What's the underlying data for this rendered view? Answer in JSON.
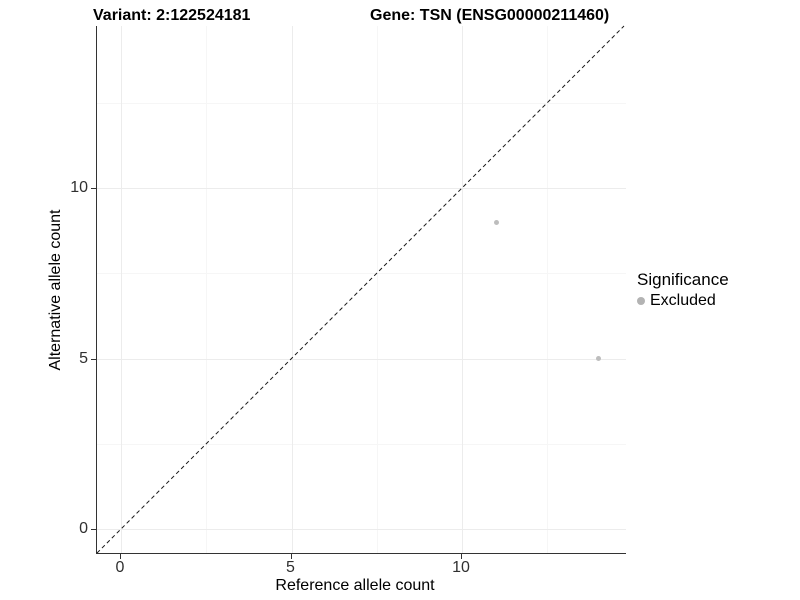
{
  "header": {
    "variant_title": "Variant: 2:122524181",
    "gene_title": "Gene: TSN (ENSG00000211460)"
  },
  "chart_data": {
    "type": "scatter",
    "title_left": "Variant: 2:122524181",
    "title_right": "Gene: TSN (ENSG00000211460)",
    "xlabel": "Reference allele count",
    "ylabel": "Alternative allele count",
    "xlim": [
      -0.75,
      14.75
    ],
    "ylim": [
      -0.75,
      14.75
    ],
    "x_ticks": [
      0,
      5,
      10
    ],
    "y_ticks": [
      0,
      5,
      10
    ],
    "x_tick_labels": [
      "0",
      "5",
      "10"
    ],
    "y_tick_labels": [
      "0",
      "5",
      "10"
    ],
    "x_minor_ticks": [
      2.5,
      7.5,
      12.5
    ],
    "y_minor_ticks": [
      2.5,
      7.5,
      12.5
    ],
    "grid": "major and minor gridlines, very light gray on white panel",
    "identity_line": {
      "type": "y=x",
      "style": "dashed",
      "color": "#1a1a1a"
    },
    "series": [
      {
        "name": "Excluded",
        "color": "#bdbdbd",
        "points": [
          {
            "x": 11,
            "y": 9
          },
          {
            "x": 14,
            "y": 5
          }
        ]
      }
    ],
    "legend_position": "right-middle"
  },
  "legend": {
    "title": "Significance",
    "items": [
      {
        "label": "Excluded",
        "color": "#b3b3b3"
      }
    ]
  },
  "colors": {
    "background": "#ffffff",
    "axis_line": "#333333",
    "tick_text": "#303030",
    "grid_major": "#ececec",
    "grid_minor": "#f6f6f6",
    "point": "#bdbdbd"
  }
}
